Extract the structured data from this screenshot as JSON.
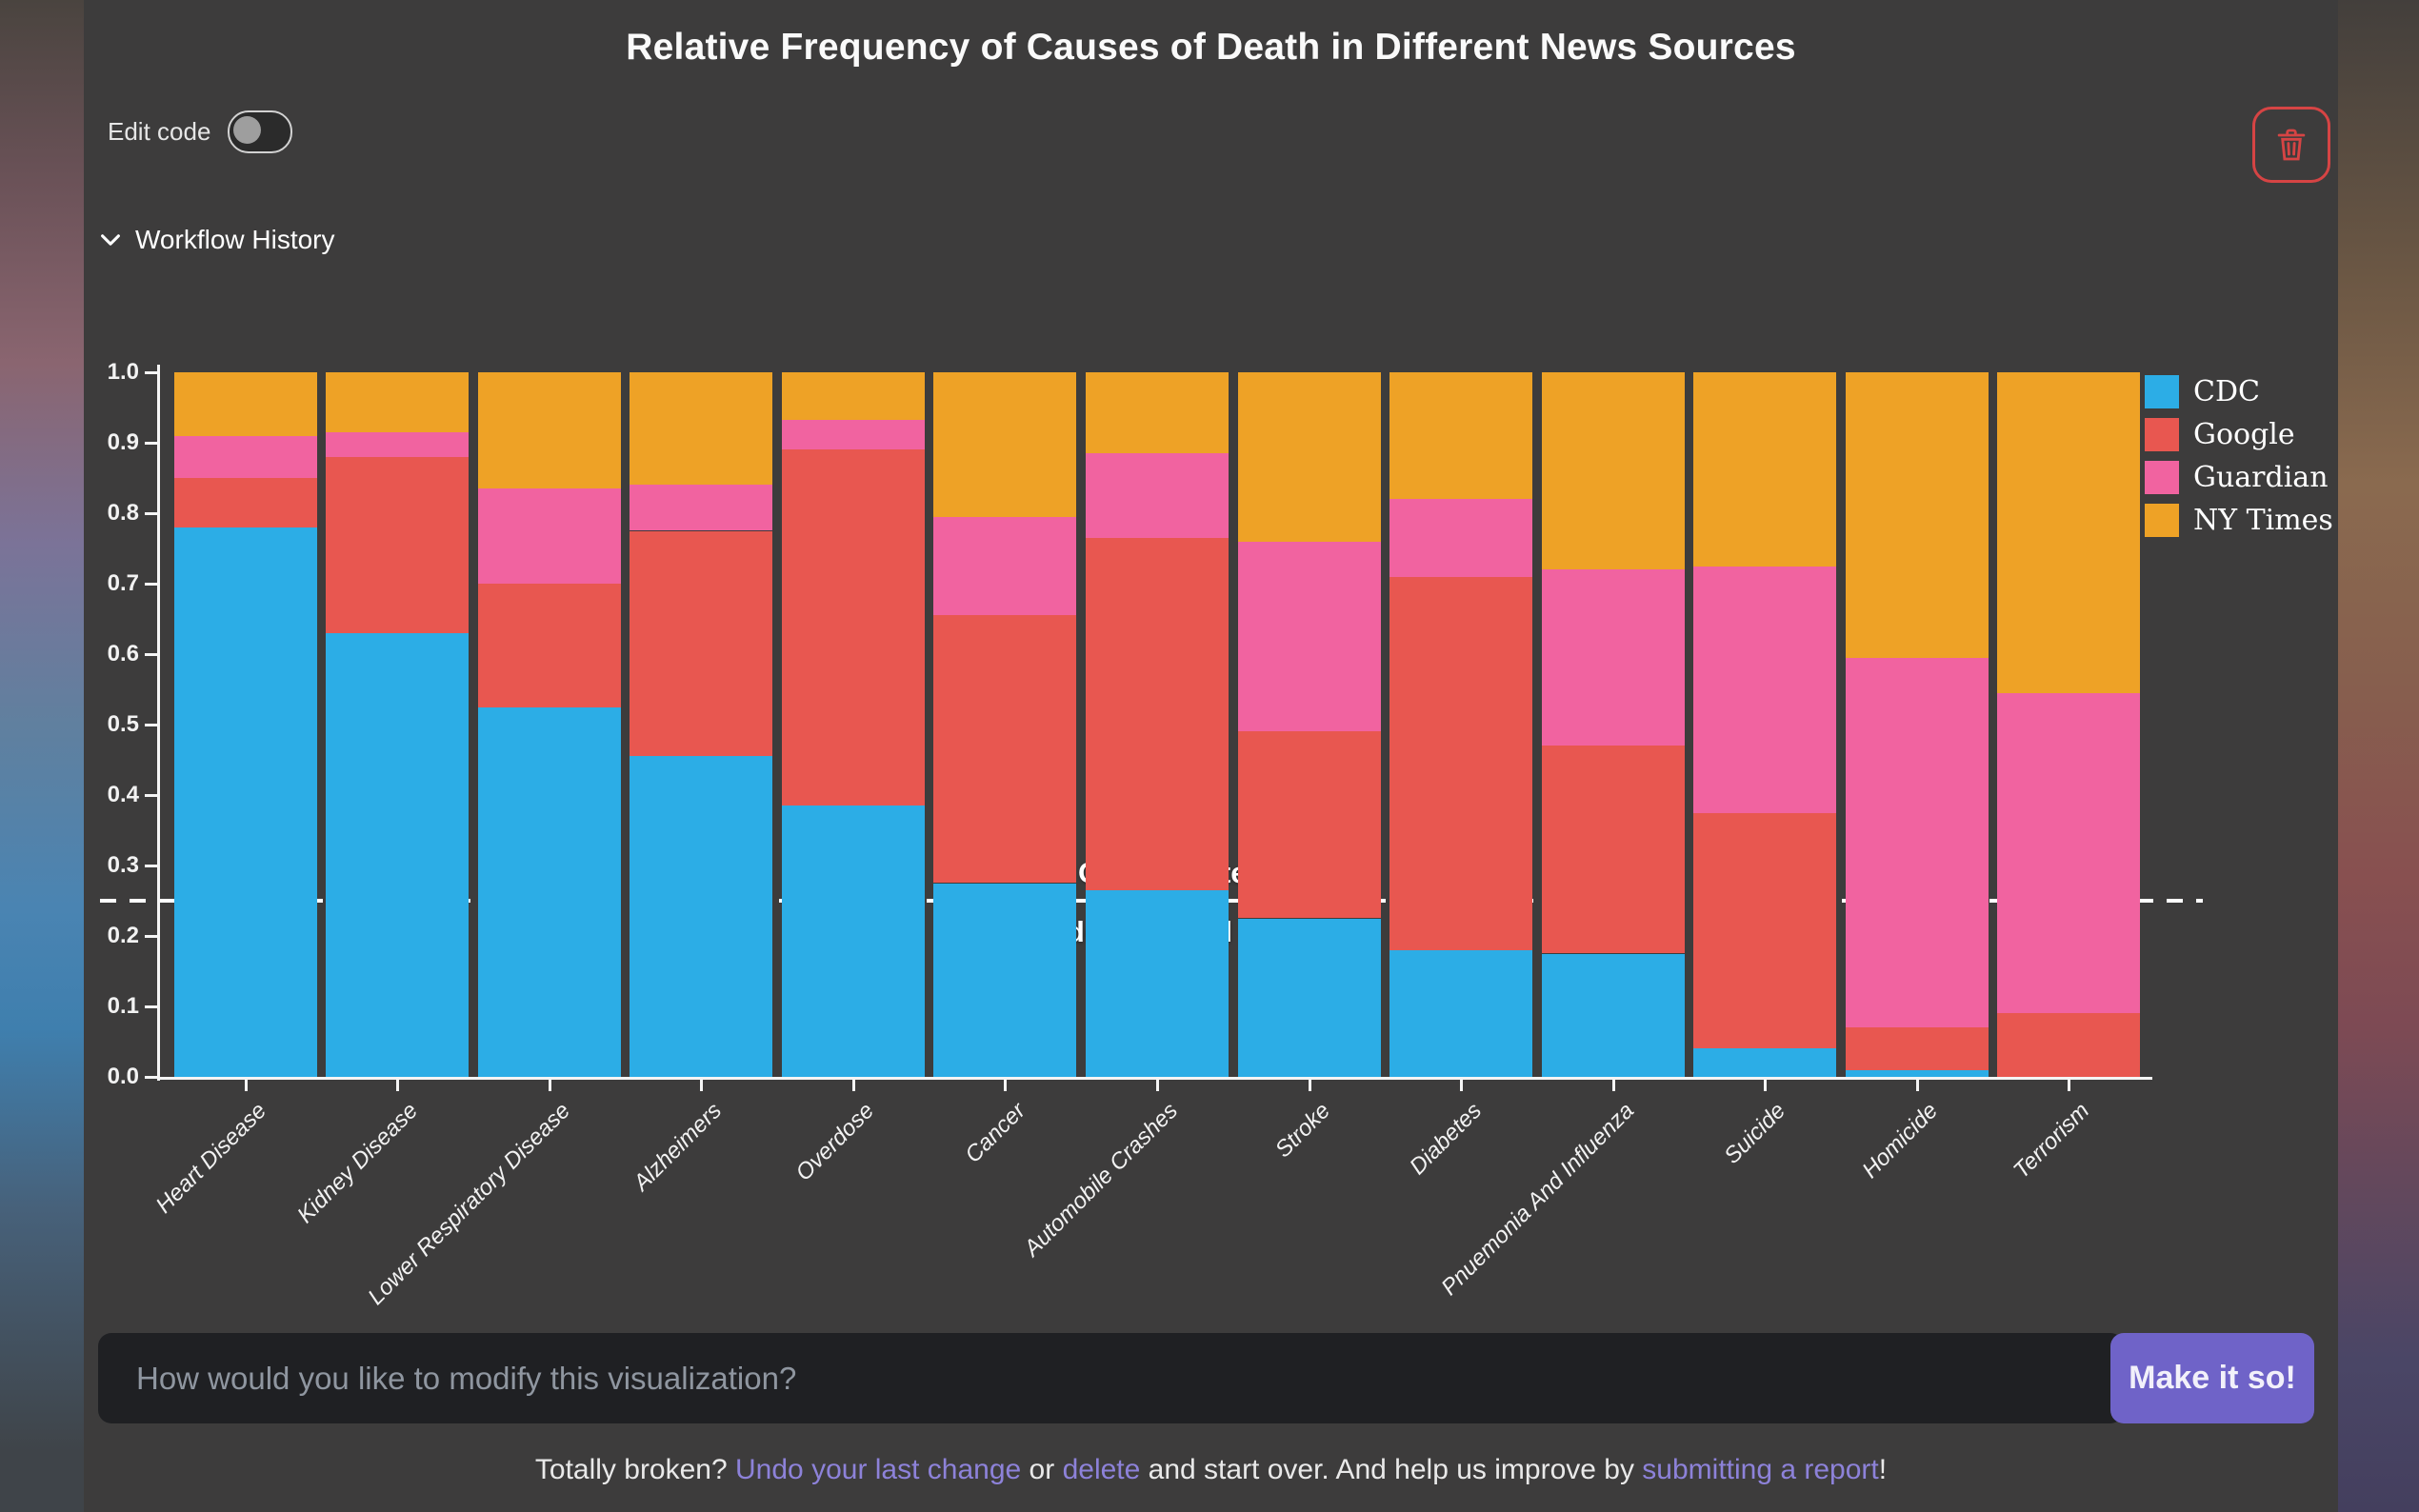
{
  "header": {
    "title": "Relative Frequency of Causes of Death in Different News Sources"
  },
  "toolbar": {
    "edit_code_label": "Edit code",
    "edit_code_state": "off",
    "trash_icon": "trash-icon"
  },
  "workflow": {
    "label": "Workflow History",
    "chevron_icon": "chevron-down-icon"
  },
  "chart_data": {
    "type": "bar",
    "stacked": true,
    "normalized": true,
    "title": "Relative Frequency of Causes of Death in Different News Sources",
    "xlabel": "",
    "ylabel": "",
    "ylim": [
      0,
      1
    ],
    "yticks": [
      "0.0",
      "0.1",
      "0.2",
      "0.3",
      "0.4",
      "0.5",
      "0.6",
      "0.7",
      "0.8",
      "0.9",
      "1.0"
    ],
    "grid": false,
    "legend_position": "upper right",
    "categories": [
      "Heart Disease",
      "Kidney Disease",
      "Lower Respiratory Disease",
      "Alzheimers",
      "Overdose",
      "Cancer",
      "Automobile Crashes",
      "Stroke",
      "Diabetes",
      "Pnuemonia And Influenza",
      "Suicide",
      "Homicide",
      "Terrorism"
    ],
    "series": [
      {
        "name": "CDC",
        "color": "#2CADE6",
        "values": [
          0.78,
          0.63,
          0.525,
          0.455,
          0.385,
          0.275,
          0.265,
          0.225,
          0.18,
          0.175,
          0.04,
          0.01,
          0.0
        ]
      },
      {
        "name": "Google",
        "color": "#E85750",
        "values": [
          0.07,
          0.25,
          0.175,
          0.32,
          0.505,
          0.38,
          0.5,
          0.265,
          0.53,
          0.295,
          0.335,
          0.06,
          0.09
        ]
      },
      {
        "name": "Guardian",
        "color": "#F163A0",
        "values": [
          0.06,
          0.035,
          0.135,
          0.065,
          0.043,
          0.14,
          0.12,
          0.27,
          0.11,
          0.25,
          0.35,
          0.525,
          0.455
        ]
      },
      {
        "name": "NY Times",
        "color": "#EEA226",
        "values": [
          0.09,
          0.085,
          0.165,
          0.16,
          0.067,
          0.205,
          0.115,
          0.24,
          0.18,
          0.28,
          0.275,
          0.405,
          0.455
        ]
      }
    ],
    "reference_line": {
      "value": 0.25,
      "style": "dashed",
      "color": "#ffffff"
    },
    "annotations": [
      {
        "text": "Overreported ➡",
        "side": "above-line"
      },
      {
        "text": "⬅ Underreported",
        "side": "below-line"
      }
    ]
  },
  "prompt_bar": {
    "placeholder": "How would you like to modify this visualization?",
    "submit_label": "Make it so!"
  },
  "footer": {
    "parts": [
      {
        "text": "Totally broken? ",
        "link": false
      },
      {
        "text": "Undo your last change",
        "link": true
      },
      {
        "text": " or ",
        "link": false
      },
      {
        "text": "delete",
        "link": true
      },
      {
        "text": " and start over. And help us improve by ",
        "link": false
      },
      {
        "text": "submitting a report",
        "link": true
      },
      {
        "text": "!",
        "link": false
      }
    ]
  },
  "colors": {
    "panel_bg": "#3d3c3c",
    "input_bg": "#1f2023",
    "accent_purple": "#6f63c8",
    "link_purple": "#8d82d9",
    "trash_red": "#d64444",
    "axis_white": "#f5f5f5"
  }
}
